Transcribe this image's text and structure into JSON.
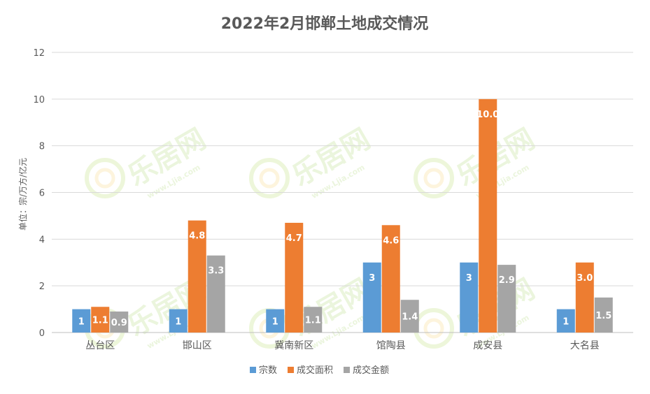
{
  "chart_data": {
    "type": "bar",
    "title": "2022年2月邯郸土地成交情况",
    "ylabel": "单位：宗/万方/亿元",
    "xlabel": "",
    "ylim": [
      0,
      12
    ],
    "yticks": [
      0,
      2,
      4,
      6,
      8,
      10,
      12
    ],
    "grid": true,
    "legend_position": "bottom",
    "categories": [
      "丛台区",
      "邯山区",
      "冀南新区",
      "馆陶县",
      "成安县",
      "大名县"
    ],
    "series": [
      {
        "name": "宗数",
        "color": "#5b9bd5",
        "values": [
          1,
          1,
          1,
          3,
          3,
          1
        ],
        "labels": [
          "1",
          "1",
          "1",
          "3",
          "3",
          "1"
        ]
      },
      {
        "name": "成交面积",
        "color": "#ed7d31",
        "values": [
          1.1,
          4.8,
          4.7,
          4.6,
          10.0,
          3.0
        ],
        "labels": [
          "1.1",
          "4.8",
          "4.7",
          "4.6",
          "10.0",
          "3.0"
        ]
      },
      {
        "name": "成交金额",
        "color": "#a5a5a5",
        "values": [
          0.9,
          3.3,
          1.1,
          1.4,
          2.9,
          1.5
        ],
        "labels": [
          "0.9",
          "3.3",
          "1.1",
          "1.4",
          "2.9",
          "1.5"
        ]
      }
    ]
  },
  "watermark": {
    "text": "乐居网",
    "subtext": "www.Ljia.com"
  }
}
